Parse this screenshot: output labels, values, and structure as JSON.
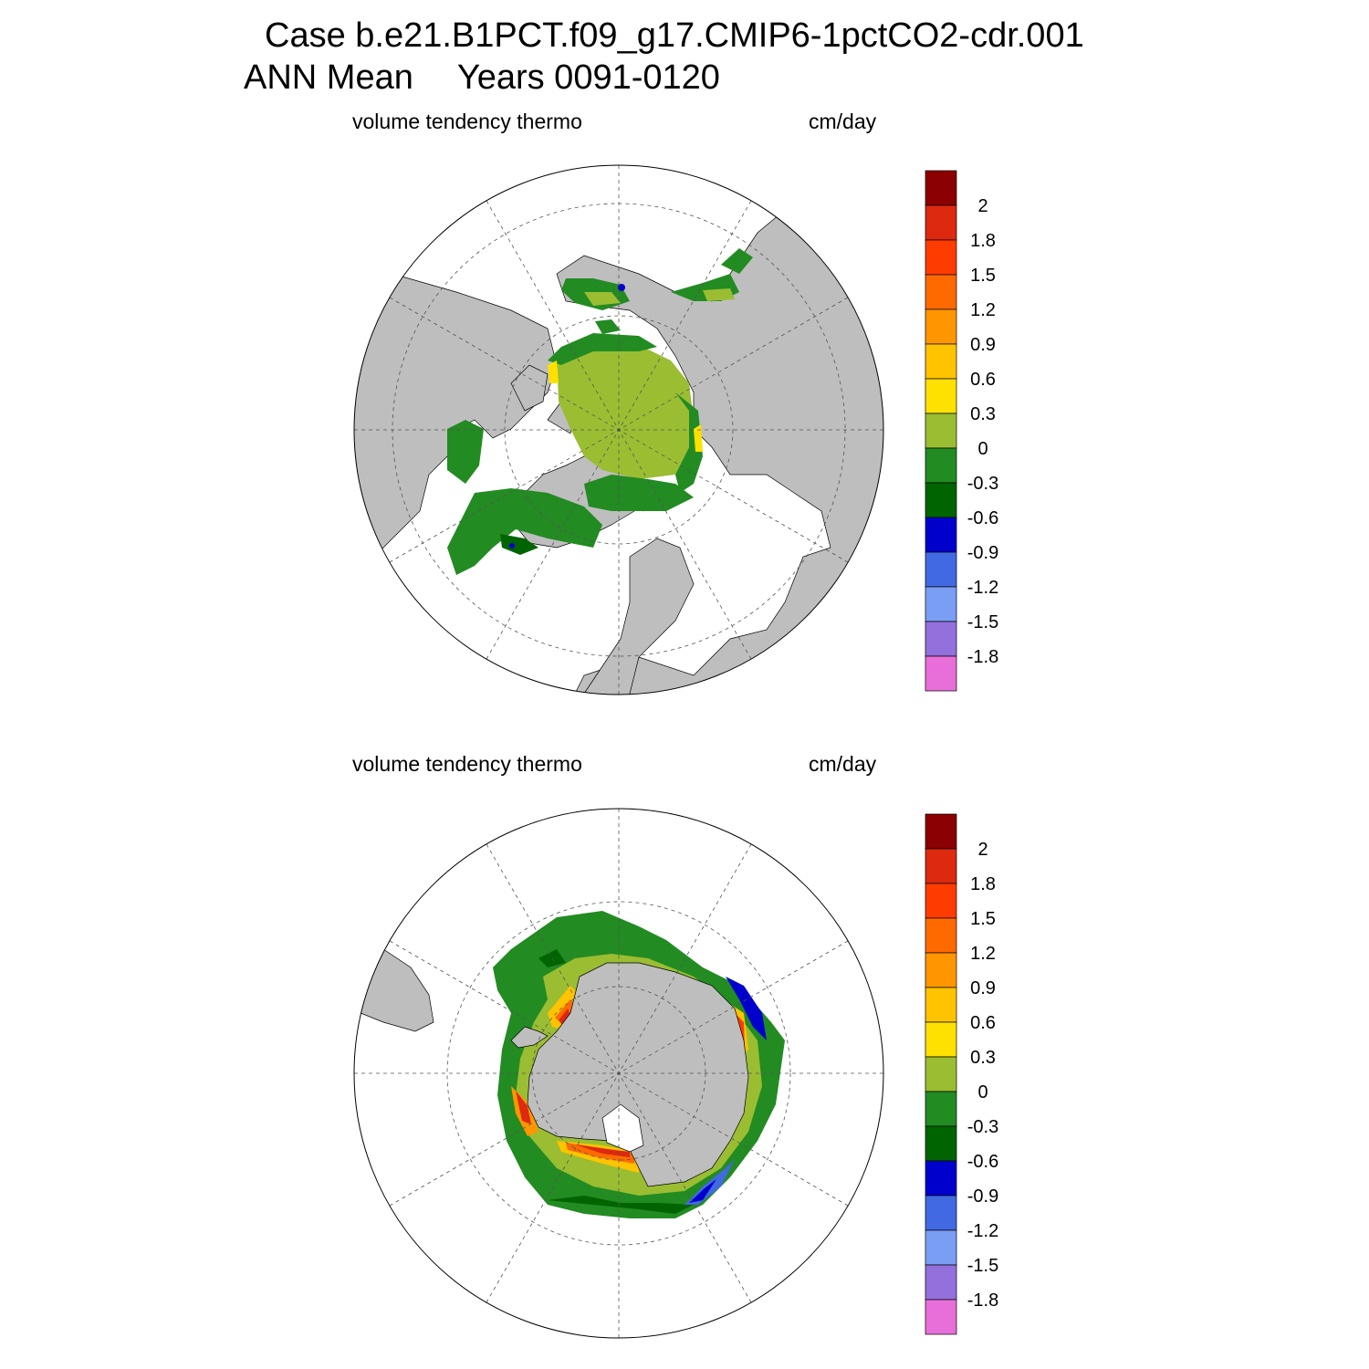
{
  "title": {
    "line1": "Case b.e21.B1PCT.f09_g17.CMIP6-1pctCO2-cdr.001",
    "season": "ANN Mean",
    "years": "Years 0091-0120"
  },
  "panels": [
    {
      "id": "north",
      "variable": "volume tendency thermo",
      "units": "cm/day"
    },
    {
      "id": "south",
      "variable": "volume tendency thermo",
      "units": "cm/day"
    }
  ],
  "colorbar": {
    "colors": [
      "#8b0000",
      "#dc2910",
      "#ff3c00",
      "#ff6a00",
      "#ff9600",
      "#ffc300",
      "#ffe100",
      "#9abd32",
      "#228b22",
      "#006400",
      "#0000cd",
      "#4169e1",
      "#7b9ef5",
      "#9370db",
      "#e86fd9"
    ],
    "labels": [
      "2",
      "1.8",
      "1.5",
      "1.2",
      "0.9",
      "0.6",
      "0.3",
      "0",
      "-0.3",
      "-0.6",
      "-0.9",
      "-1.2",
      "-1.5",
      "-1.8"
    ]
  },
  "map_colors": {
    "land": "#bebebe",
    "ocean": "#ffffff",
    "grid": "#555555"
  }
}
